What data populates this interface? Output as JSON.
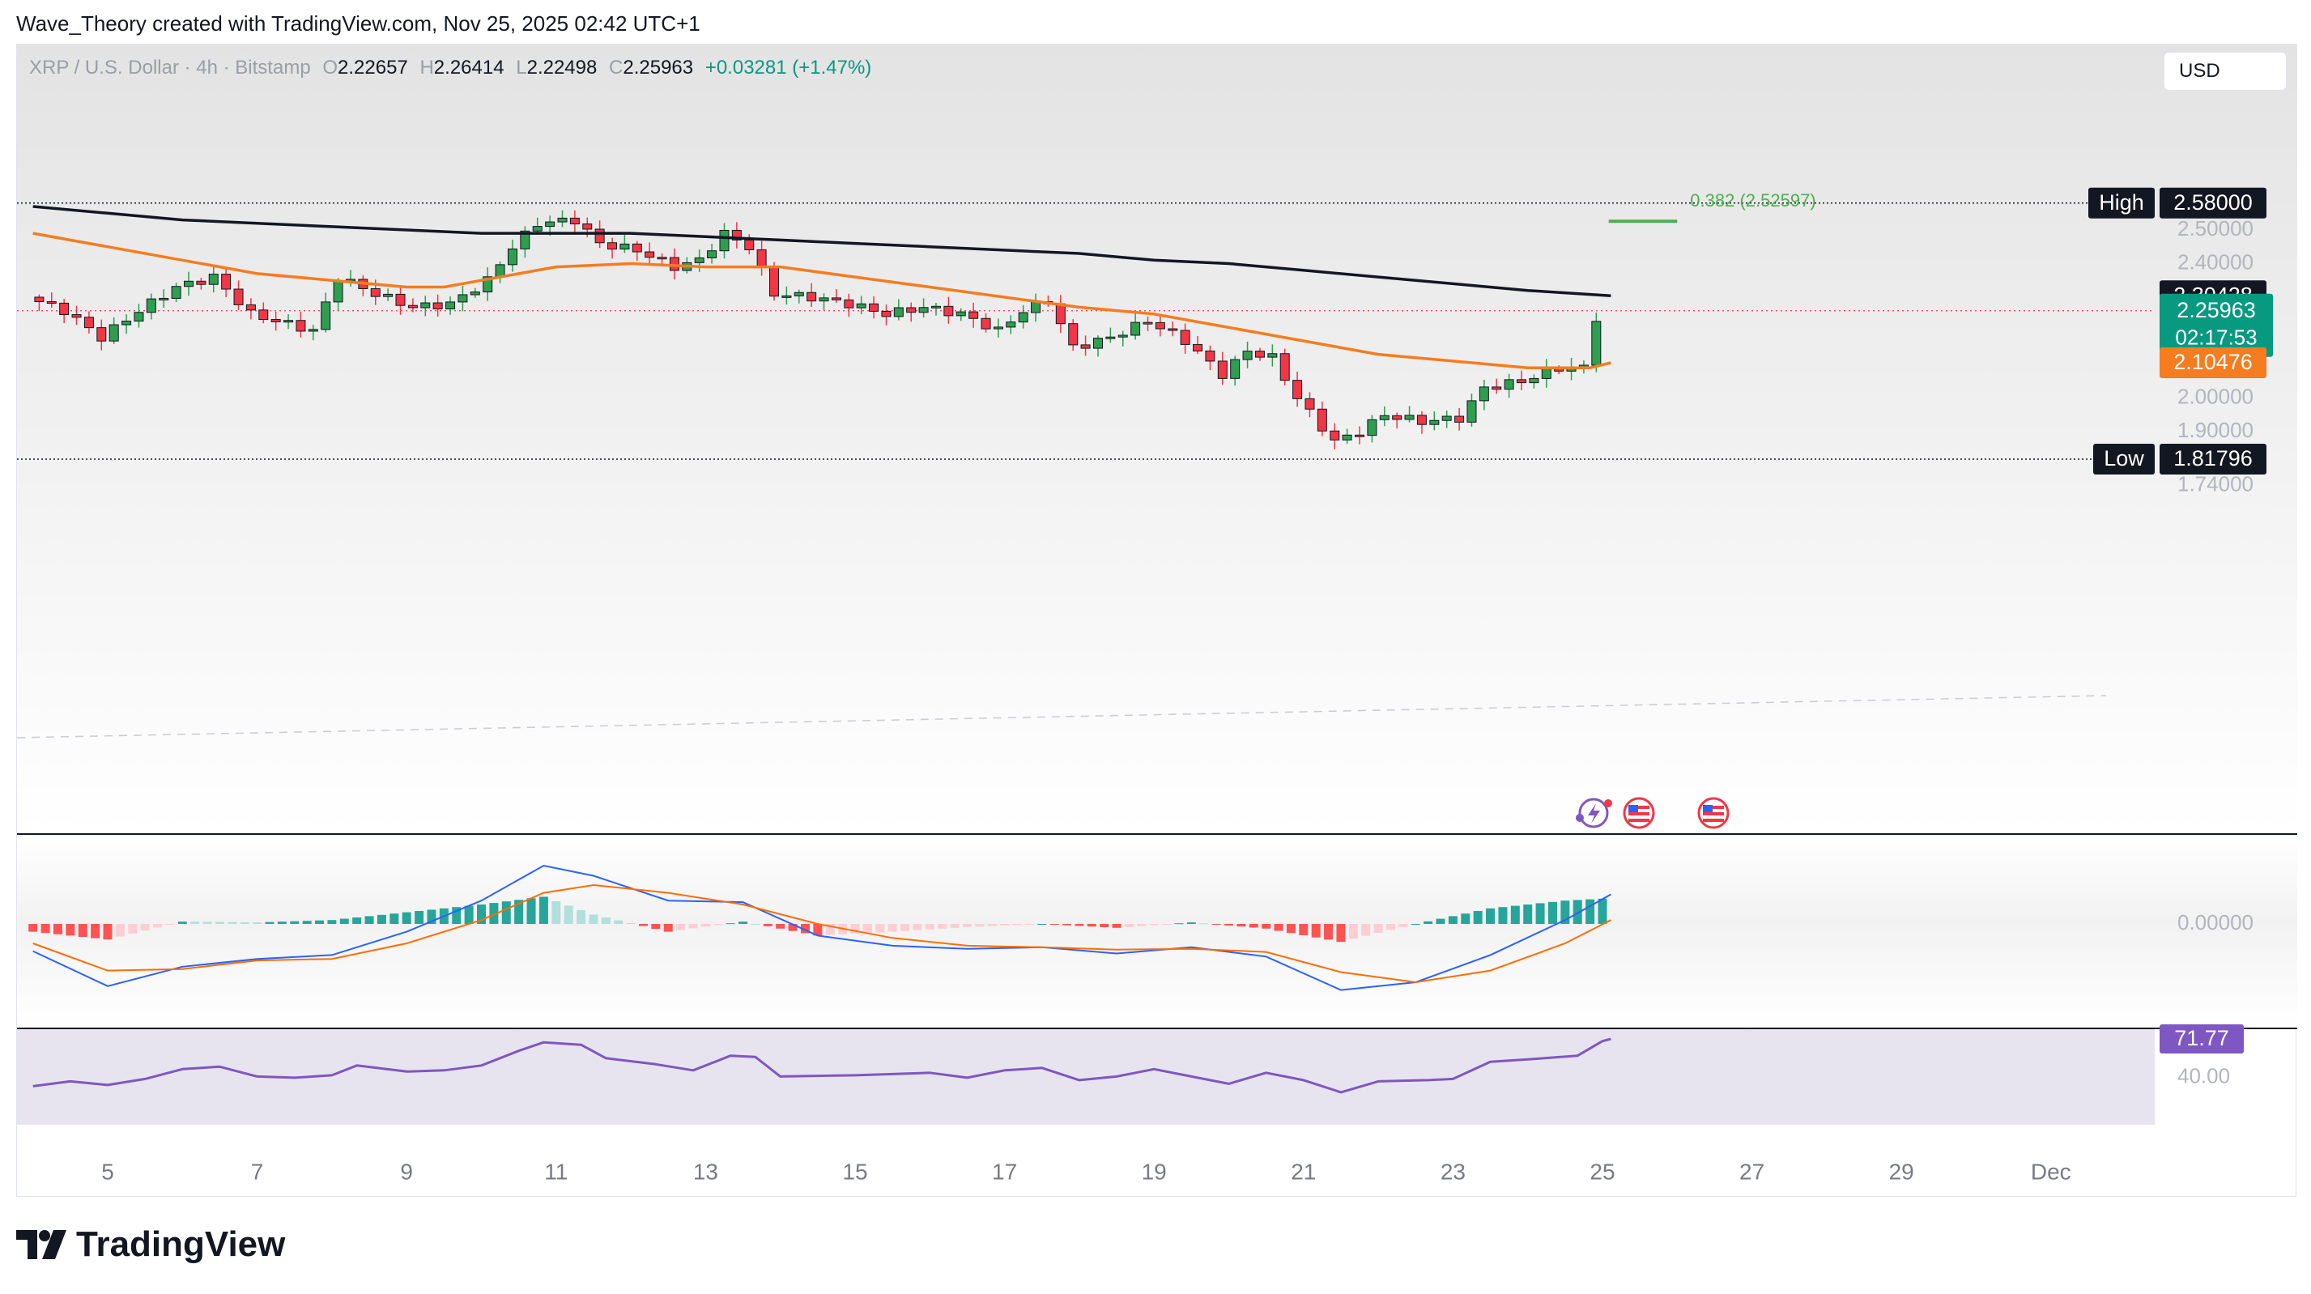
{
  "attribution": "Wave_Theory created with TradingView.com, Nov 25, 2025 02:42 UTC+1",
  "header": {
    "symbol": "XRP / U.S. Dollar · 4h · Bitstamp",
    "open_key": "O",
    "open": "2.22657",
    "high_key": "H",
    "high": "2.26414",
    "low_key": "L",
    "low": "2.22498",
    "close_key": "C",
    "close": "2.25963",
    "change": "+0.03281 (+1.47%)"
  },
  "currency_button": "USD",
  "logo_text": "TradingView",
  "colors": {
    "bull": "#089981",
    "bull_body": "#2e9e4f",
    "bear": "#f23645",
    "ema_fast": "#f57c1f",
    "sma_slow": "#131722",
    "macd": "#2962ff",
    "signal": "#ff6d00",
    "rsi": "#7e57c2",
    "fib": "#4caf50"
  },
  "chart_data": [
    {
      "type": "candlestick",
      "panel": "price",
      "symbol": "XRP/USD",
      "interval": "4h",
      "x_axis": {
        "ticks": [
          "5",
          "7",
          "9",
          "11",
          "13",
          "15",
          "17",
          "19",
          "21",
          "23",
          "25",
          "27",
          "29",
          "Dec"
        ]
      },
      "y_axis": {
        "ticks": [
          "2.50000",
          "2.40000",
          "2.00000",
          "1.90000",
          "1.74000"
        ],
        "range": [
          1.68,
          2.68
        ]
      },
      "price_path": [
        [
          "Nov 4 00:00",
          2.3
        ],
        [
          "Nov 4 12:00",
          2.26
        ],
        [
          "Nov 5 00:00",
          2.18
        ],
        [
          "Nov 5 12:00",
          2.26
        ],
        [
          "Nov 6 00:00",
          2.33
        ],
        [
          "Nov 6 12:00",
          2.36
        ],
        [
          "Nov 7 00:00",
          2.25
        ],
        [
          "Nov 7 12:00",
          2.22
        ],
        [
          "Nov 7 20:00",
          2.2
        ],
        [
          "Nov 8 04:00",
          2.36
        ],
        [
          "Nov 8 16:00",
          2.31
        ],
        [
          "Nov 9 04:00",
          2.27
        ],
        [
          "Nov 9 16:00",
          2.28
        ],
        [
          "Nov 10 04:00",
          2.35
        ],
        [
          "Nov 10 12:00",
          2.45
        ],
        [
          "Nov 10 20:00",
          2.52
        ],
        [
          "Nov 11 08:00",
          2.53
        ],
        [
          "Nov 11 16:00",
          2.46
        ],
        [
          "Nov 12 04:00",
          2.44
        ],
        [
          "Nov 12 16:00",
          2.39
        ],
        [
          "Nov 13 00:00",
          2.41
        ],
        [
          "Nov 13 08:00",
          2.49
        ],
        [
          "Nov 13 16:00",
          2.45
        ],
        [
          "Nov 14 00:00",
          2.31
        ],
        [
          "Nov 14 12:00",
          2.3
        ],
        [
          "Nov 15 00:00",
          2.28
        ],
        [
          "Nov 15 12:00",
          2.25
        ],
        [
          "Nov 16 00:00",
          2.27
        ],
        [
          "Nov 16 12:00",
          2.25
        ],
        [
          "Nov 17 00:00",
          2.2
        ],
        [
          "Nov 17 08:00",
          2.26
        ],
        [
          "Nov 17 16:00",
          2.29
        ],
        [
          "Nov 18 00:00",
          2.15
        ],
        [
          "Nov 18 12:00",
          2.18
        ],
        [
          "Nov 19 00:00",
          2.23
        ],
        [
          "Nov 19 12:00",
          2.17
        ],
        [
          "Nov 20 00:00",
          2.07
        ],
        [
          "Nov 20 08:00",
          2.14
        ],
        [
          "Nov 20 16:00",
          2.12
        ],
        [
          "Nov 21 00:00",
          2.0
        ],
        [
          "Nov 21 12:00",
          1.87
        ],
        [
          "Nov 21 20:00",
          1.9
        ],
        [
          "Nov 22 04:00",
          1.95
        ],
        [
          "Nov 22 16:00",
          1.93
        ],
        [
          "Nov 23 04:00",
          1.94
        ],
        [
          "Nov 23 12:00",
          2.03
        ],
        [
          "Nov 24 00:00",
          2.05
        ],
        [
          "Nov 24 12:00",
          2.09
        ],
        [
          "Nov 24 20:00",
          2.09
        ],
        [
          "Nov 25 00:00",
          2.24
        ],
        [
          "Nov 25 02:42",
          2.25963
        ]
      ],
      "lines": [
        {
          "kind": "ema_orange",
          "points": [
            [
              "Nov 4 00:00",
              2.49
            ],
            [
              "Nov 5 00:00",
              2.45
            ],
            [
              "Nov 6 00:00",
              2.41
            ],
            [
              "Nov 7 00:00",
              2.37
            ],
            [
              "Nov 8 00:00",
              2.35
            ],
            [
              "Nov 9 00:00",
              2.33
            ],
            [
              "Nov 9 12:00",
              2.33
            ],
            [
              "Nov 10 00:00",
              2.35
            ],
            [
              "Nov 11 00:00",
              2.39
            ],
            [
              "Nov 12 00:00",
              2.4
            ],
            [
              "Nov 13 00:00",
              2.39
            ],
            [
              "Nov 14 00:00",
              2.39
            ],
            [
              "Nov 15 00:00",
              2.36
            ],
            [
              "Nov 16 00:00",
              2.33
            ],
            [
              "Nov 17 00:00",
              2.3
            ],
            [
              "Nov 18 00:00",
              2.27
            ],
            [
              "Nov 19 00:00",
              2.25
            ],
            [
              "Nov 20 00:00",
              2.21
            ],
            [
              "Nov 21 00:00",
              2.17
            ],
            [
              "Nov 22 00:00",
              2.13
            ],
            [
              "Nov 23 00:00",
              2.11
            ],
            [
              "Nov 24 00:00",
              2.09
            ],
            [
              "Nov 24 20:00",
              2.09
            ],
            [
              "Nov 25 02:42",
              2.10476
            ]
          ]
        },
        {
          "kind": "sma_black",
          "points": [
            [
              "Nov 4 00:00",
              2.57
            ],
            [
              "Nov 5 00:00",
              2.55
            ],
            [
              "Nov 6 00:00",
              2.53
            ],
            [
              "Nov 7 00:00",
              2.52
            ],
            [
              "Nov 8 00:00",
              2.51
            ],
            [
              "Nov 9 00:00",
              2.5
            ],
            [
              "Nov 10 00:00",
              2.49
            ],
            [
              "Nov 11 00:00",
              2.49
            ],
            [
              "Nov 12 00:00",
              2.49
            ],
            [
              "Nov 13 00:00",
              2.48
            ],
            [
              "Nov 14 00:00",
              2.47
            ],
            [
              "Nov 15 00:00",
              2.46
            ],
            [
              "Nov 16 00:00",
              2.45
            ],
            [
              "Nov 17 00:00",
              2.44
            ],
            [
              "Nov 18 00:00",
              2.43
            ],
            [
              "Nov 19 00:00",
              2.41
            ],
            [
              "Nov 20 00:00",
              2.4
            ],
            [
              "Nov 21 00:00",
              2.38
            ],
            [
              "Nov 22 00:00",
              2.36
            ],
            [
              "Nov 23 00:00",
              2.34
            ],
            [
              "Nov 24 00:00",
              2.32
            ],
            [
              "Nov 25 02:42",
              2.30428
            ]
          ]
        }
      ],
      "levels": [
        {
          "name": "high",
          "label": "High",
          "value": 2.58,
          "text": "2.58000"
        },
        {
          "name": "low",
          "label": "Low",
          "value": 1.81796,
          "text": "1.81796"
        },
        {
          "name": "fib",
          "label": "0.382 (2.52597)",
          "value": 2.52597,
          "start": "Nov 25 02:00",
          "end": "Nov 26 00:00"
        }
      ],
      "price_tags": [
        {
          "name": "sma-tag",
          "text": "2.30428",
          "value": 2.30428,
          "color": "#131722"
        },
        {
          "name": "last-price-tag",
          "text": "2.25963",
          "countdown": "02:17:53",
          "value": 2.25963,
          "color": "#089981"
        },
        {
          "name": "ema-tag",
          "text": "2.10476",
          "value": 2.10476,
          "color": "#f57c1f"
        }
      ]
    },
    {
      "type": "macd",
      "panel": "macd",
      "y_axis": {
        "ticks": [
          "0.00000"
        ]
      },
      "notes": "histogram with MACD (blue) and signal (orange) lines; values in relative units, 0 = zero line",
      "macd_path": [
        [
          "Nov 4 00:00",
          -0.35
        ],
        [
          "Nov 5 00:00",
          -0.8
        ],
        [
          "Nov 6 00:00",
          -0.55
        ],
        [
          "Nov 7 00:00",
          -0.45
        ],
        [
          "Nov 8 00:00",
          -0.4
        ],
        [
          "Nov 9 00:00",
          -0.1
        ],
        [
          "Nov 10 00:00",
          0.3
        ],
        [
          "Nov 10 20:00",
          0.75
        ],
        [
          "Nov 11 12:00",
          0.62
        ],
        [
          "Nov 12 12:00",
          0.3
        ],
        [
          "Nov 13 12:00",
          0.28
        ],
        [
          "Nov 14 12:00",
          -0.15
        ],
        [
          "Nov 15 12:00",
          -0.28
        ],
        [
          "Nov 16 12:00",
          -0.32
        ],
        [
          "Nov 17 12:00",
          -0.3
        ],
        [
          "Nov 18 12:00",
          -0.38
        ],
        [
          "Nov 19 12:00",
          -0.3
        ],
        [
          "Nov 20 12:00",
          -0.42
        ],
        [
          "Nov 21 12:00",
          -0.85
        ],
        [
          "Nov 22 12:00",
          -0.75
        ],
        [
          "Nov 23 12:00",
          -0.4
        ],
        [
          "Nov 24 12:00",
          0.05
        ],
        [
          "Nov 25 02:42",
          0.38
        ]
      ],
      "signal_path": [
        [
          "Nov 4 00:00",
          -0.25
        ],
        [
          "Nov 5 00:00",
          -0.6
        ],
        [
          "Nov 6 00:00",
          -0.58
        ],
        [
          "Nov 7 00:00",
          -0.47
        ],
        [
          "Nov 8 00:00",
          -0.45
        ],
        [
          "Nov 9 00:00",
          -0.25
        ],
        [
          "Nov 10 00:00",
          0.05
        ],
        [
          "Nov 10 20:00",
          0.4
        ],
        [
          "Nov 11 12:00",
          0.5
        ],
        [
          "Nov 12 12:00",
          0.4
        ],
        [
          "Nov 13 12:00",
          0.25
        ],
        [
          "Nov 14 12:00",
          0.0
        ],
        [
          "Nov 15 12:00",
          -0.18
        ],
        [
          "Nov 16 12:00",
          -0.28
        ],
        [
          "Nov 17 12:00",
          -0.3
        ],
        [
          "Nov 18 12:00",
          -0.33
        ],
        [
          "Nov 19 12:00",
          -0.32
        ],
        [
          "Nov 20 12:00",
          -0.36
        ],
        [
          "Nov 21 12:00",
          -0.62
        ],
        [
          "Nov 22 12:00",
          -0.75
        ],
        [
          "Nov 23 12:00",
          -0.6
        ],
        [
          "Nov 24 12:00",
          -0.25
        ],
        [
          "Nov 25 02:42",
          0.05
        ]
      ]
    },
    {
      "type": "line",
      "panel": "rsi",
      "y_axis": {
        "ticks": [
          "40.00"
        ],
        "range": [
          20,
          80
        ]
      },
      "last_value": 71.77,
      "last_value_text": "71.77",
      "band": [
        30,
        70
      ],
      "path": [
        [
          "Nov 4 00:00",
          33
        ],
        [
          "Nov 4 12:00",
          37
        ],
        [
          "Nov 5 00:00",
          34
        ],
        [
          "Nov 5 12:00",
          39
        ],
        [
          "Nov 6 00:00",
          47
        ],
        [
          "Nov 6 12:00",
          49
        ],
        [
          "Nov 7 00:00",
          41
        ],
        [
          "Nov 7 12:00",
          40
        ],
        [
          "Nov 8 00:00",
          42
        ],
        [
          "Nov 8 08:00",
          50
        ],
        [
          "Nov 9 00:00",
          45
        ],
        [
          "Nov 9 12:00",
          46
        ],
        [
          "Nov 10 00:00",
          50
        ],
        [
          "Nov 10 12:00",
          62
        ],
        [
          "Nov 10 20:00",
          69
        ],
        [
          "Nov 11 08:00",
          67
        ],
        [
          "Nov 11 16:00",
          56
        ],
        [
          "Nov 12 08:00",
          51
        ],
        [
          "Nov 12 20:00",
          46
        ],
        [
          "Nov 13 08:00",
          58
        ],
        [
          "Nov 13 16:00",
          57
        ],
        [
          "Nov 14 00:00",
          41
        ],
        [
          "Nov 15 00:00",
          42
        ],
        [
          "Nov 16 00:00",
          44
        ],
        [
          "Nov 16 12:00",
          40
        ],
        [
          "Nov 17 00:00",
          46
        ],
        [
          "Nov 17 12:00",
          48
        ],
        [
          "Nov 18 00:00",
          38
        ],
        [
          "Nov 18 12:00",
          41
        ],
        [
          "Nov 19 00:00",
          47
        ],
        [
          "Nov 19 12:00",
          41
        ],
        [
          "Nov 20 00:00",
          35
        ],
        [
          "Nov 20 12:00",
          44
        ],
        [
          "Nov 21 00:00",
          38
        ],
        [
          "Nov 21 12:00",
          28
        ],
        [
          "Nov 22 00:00",
          37
        ],
        [
          "Nov 22 16:00",
          38
        ],
        [
          "Nov 23 00:00",
          39
        ],
        [
          "Nov 23 12:00",
          53
        ],
        [
          "Nov 24 00:00",
          55
        ],
        [
          "Nov 24 16:00",
          58
        ],
        [
          "Nov 25 00:00",
          70
        ],
        [
          "Nov 25 02:42",
          71.77
        ]
      ]
    }
  ]
}
